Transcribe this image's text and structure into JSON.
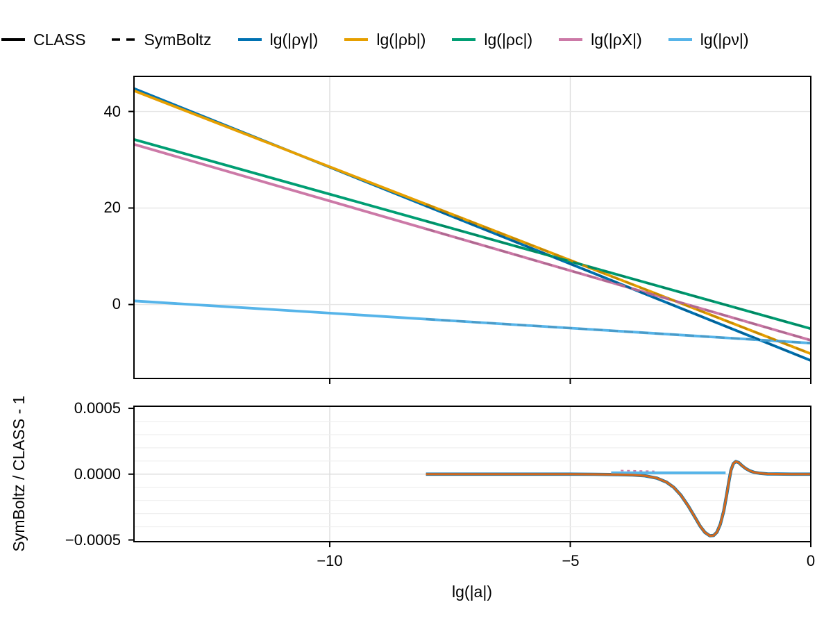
{
  "legend": {
    "items": [
      {
        "label": "CLASS",
        "swatch": "line-solid",
        "color": "#000000"
      },
      {
        "label": "SymBoltz",
        "swatch": "line-dashed",
        "color": "#000000"
      },
      {
        "label": "lg(|ργ|)",
        "swatch": "line-solid",
        "color": "#0072B2"
      },
      {
        "label": "lg(|ρb|)",
        "swatch": "line-solid",
        "color": "#E69F00"
      },
      {
        "label": "lg(|ρc|)",
        "swatch": "line-solid",
        "color": "#009E73"
      },
      {
        "label": "lg(|ρX|)",
        "swatch": "line-solid",
        "color": "#CC79A7"
      },
      {
        "label": "lg(|ρν|)",
        "swatch": "line-solid",
        "color": "#56B4E9"
      }
    ]
  },
  "axes": {
    "xlabel": "lg(|a|)",
    "res_ylabel": "SymBoltz / CLASS - 1",
    "main_yticks": [
      {
        "v": 40,
        "label": "40"
      },
      {
        "v": 20,
        "label": "20"
      },
      {
        "v": 0,
        "label": "0"
      }
    ],
    "xticks": [
      {
        "v": -10,
        "label": "−10"
      },
      {
        "v": -5,
        "label": "−5"
      },
      {
        "v": 0,
        "label": "0"
      }
    ],
    "res_yticks": [
      {
        "v": 0.0005,
        "label": "0.0005"
      },
      {
        "v": 0,
        "label": "0.0000"
      },
      {
        "v": -0.0005,
        "label": "−0.0005"
      }
    ]
  },
  "chart_data": {
    "type": "line",
    "title": "",
    "xlabel": "lg(|a|)",
    "x_lim": [
      -14.07,
      0
    ],
    "x_ticks": [
      -10,
      -5,
      0
    ],
    "legend_position": "top",
    "grid": true,
    "line_styles": {
      "CLASS": "solid",
      "SymBoltz": "dashed",
      "symboltz_xmin": -8
    },
    "panels": [
      {
        "name": "log-densities",
        "ylim": [
          -15.32,
          47.27
        ],
        "yticks": [
          0,
          20,
          40
        ],
        "series": [
          {
            "name": "lg(|ργ|)",
            "color": "#0072B2",
            "points": [
              [
                -14.07,
                44.75
              ],
              [
                0,
                -11.6
              ]
            ]
          },
          {
            "name": "lg(|ρb|)",
            "color": "#E69F00",
            "points": [
              [
                -14.07,
                44.3
              ],
              [
                0,
                -10.2
              ]
            ]
          },
          {
            "name": "lg(|ρc|)",
            "color": "#009E73",
            "points": [
              [
                -14.07,
                34.2
              ],
              [
                0,
                -5.0
              ]
            ]
          },
          {
            "name": "lg(|ρX|)",
            "color": "#CC79A7",
            "points": [
              [
                -14.07,
                33.2
              ],
              [
                0,
                -7.4
              ]
            ]
          },
          {
            "name": "lg(|ρν|)",
            "color": "#56B4E9",
            "points": [
              [
                -14.07,
                0.75
              ],
              [
                0,
                -8.0
              ]
            ]
          }
        ]
      },
      {
        "name": "residual SymBoltz / CLASS - 1",
        "ylabel": "SymBoltz / CLASS - 1",
        "ylim": [
          -0.000513,
          0.000516
        ],
        "yticks": [
          -0.0005,
          0,
          0.0005
        ],
        "minor_step": 0.0001,
        "gb_points": [
          [
            -8,
            0
          ],
          [
            -7,
            0
          ],
          [
            -6,
            0
          ],
          [
            -5,
            0
          ],
          [
            -4.5,
            -1e-06
          ],
          [
            -4.0,
            -3e-06
          ],
          [
            -3.7,
            -6e-06
          ],
          [
            -3.45,
            -1.2e-05
          ],
          [
            -3.2,
            -3e-05
          ],
          [
            -3.0,
            -6e-05
          ],
          [
            -2.85,
            -0.0001
          ],
          [
            -2.7,
            -0.00016
          ],
          [
            -2.55,
            -0.00024
          ],
          [
            -2.42,
            -0.00032
          ],
          [
            -2.3,
            -0.000395
          ],
          [
            -2.2,
            -0.000443
          ],
          [
            -2.1,
            -0.000468
          ],
          [
            -2.02,
            -0.000466
          ],
          [
            -1.95,
            -0.00044
          ],
          [
            -1.88,
            -0.00038
          ],
          [
            -1.81,
            -0.00028
          ],
          [
            -1.75,
            -0.00016
          ],
          [
            -1.7,
            -5e-05
          ],
          [
            -1.66,
            3e-05
          ],
          [
            -1.61,
            8e-05
          ],
          [
            -1.56,
            9.6e-05
          ],
          [
            -1.5,
            8.8e-05
          ],
          [
            -1.43,
            6.5e-05
          ],
          [
            -1.35,
            4.2e-05
          ],
          [
            -1.27,
            2.6e-05
          ],
          [
            -1.18,
            1.4e-05
          ],
          [
            -1.05,
            6e-06
          ],
          [
            -0.9,
            2e-06
          ],
          [
            -0.7,
            1e-06
          ],
          [
            -0.4,
            0
          ],
          [
            0,
            0
          ]
        ],
        "series": [
          {
            "name": "X-residual-noise",
            "color": "#CC79A7",
            "width": 2,
            "dash": "4 5",
            "points": [
              [
                -3.95,
                2.8e-05
              ],
              [
                -3.25,
                2.2e-05
              ]
            ]
          },
          {
            "name": "gamma-residual",
            "color": "#0072B2",
            "width": 4.6,
            "points_ref": "gb"
          },
          {
            "name": "nu-residual",
            "color": "#56B4E9",
            "width": 4,
            "points": [
              [
                -4.15,
                1e-05
              ],
              [
                -1.77,
                1e-05
              ]
            ]
          },
          {
            "name": "b-residual",
            "color": "#D2691E",
            "width": 3.2,
            "points_ref": "gb"
          }
        ]
      }
    ]
  }
}
